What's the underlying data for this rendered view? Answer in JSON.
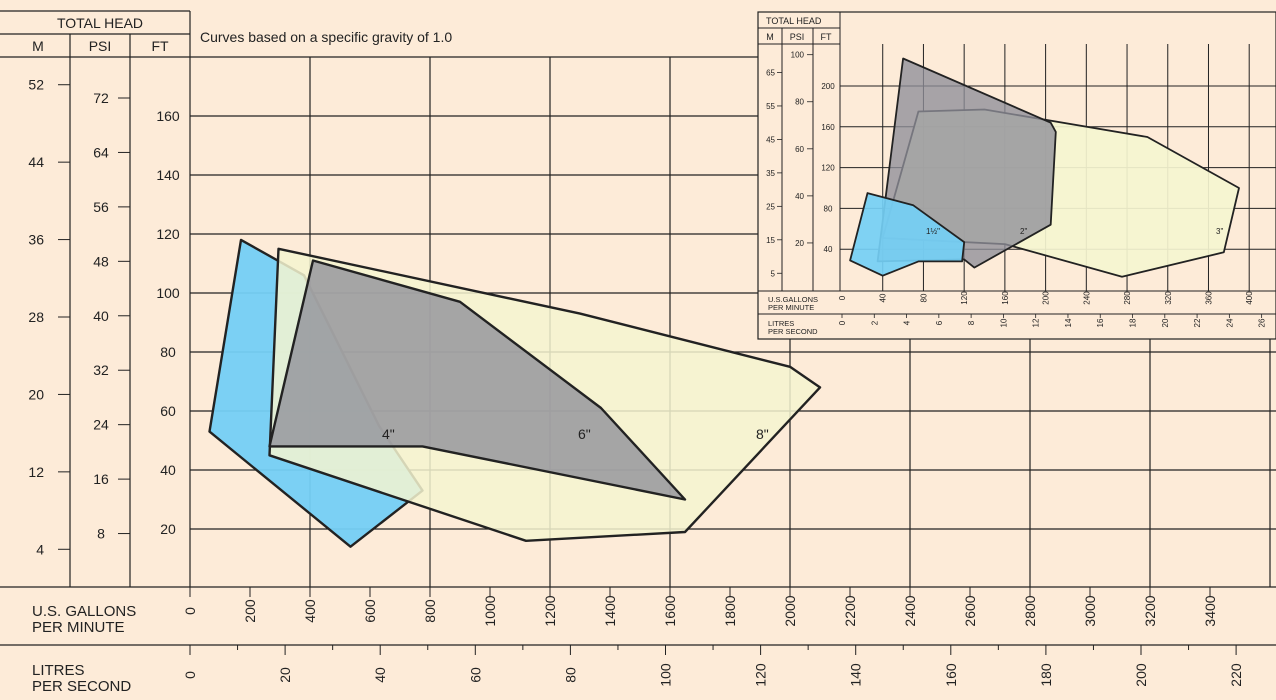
{
  "main_chart": {
    "head_header": {
      "title": "TOTAL HEAD",
      "col_m": "M",
      "col_psi": "PSI",
      "col_ft": "FT"
    },
    "note": "Curves based on a specific gravity of 1.0",
    "axis_gpm_label_1": "U.S. GALLONS",
    "axis_gpm_label_2": "PER MINUTE",
    "axis_lps_label_1": "LITRES",
    "axis_lps_label_2": "PER SECOND",
    "m_ticks": [
      "52",
      "44",
      "36",
      "28",
      "20",
      "12",
      "4"
    ],
    "psi_ticks": [
      "72",
      "64",
      "56",
      "48",
      "40",
      "32",
      "24",
      "16",
      "8"
    ],
    "ft_ticks": [
      "160",
      "140",
      "120",
      "100",
      "80",
      "60",
      "40",
      "20"
    ],
    "gpm_ticks": [
      "0",
      "200",
      "400",
      "600",
      "800",
      "1000",
      "1200",
      "1400",
      "1600",
      "1800",
      "2000",
      "2200",
      "2400",
      "2600",
      "2800",
      "3000",
      "3200",
      "3400"
    ],
    "lps_ticks": [
      "0",
      "20",
      "40",
      "60",
      "80",
      "100",
      "120",
      "140",
      "160",
      "180",
      "200",
      "220"
    ],
    "region_labels": [
      "4\"",
      "6\"",
      "8\""
    ]
  },
  "inset_chart": {
    "head_header": {
      "title": "TOTAL HEAD",
      "col_m": "M",
      "col_psi": "PSI",
      "col_ft": "FT"
    },
    "axis_gpm_label_1": "U.S.GALLONS",
    "axis_gpm_label_2": "PER MINUTE",
    "axis_lps_label_1": "LITRES",
    "axis_lps_label_2": "PER SECOND",
    "m_ticks": [
      "65",
      "55",
      "45",
      "35",
      "25",
      "15",
      "5"
    ],
    "psi_ticks": [
      "100",
      "80",
      "60",
      "40",
      "20"
    ],
    "ft_ticks": [
      "200",
      "160",
      "120",
      "80",
      "40"
    ],
    "gpm_ticks": [
      "0",
      "40",
      "80",
      "120",
      "160",
      "200",
      "240",
      "280",
      "320",
      "360",
      "400"
    ],
    "lps_ticks": [
      "0",
      "2",
      "4",
      "6",
      "8",
      "10",
      "12",
      "14",
      "16",
      "18",
      "20",
      "22",
      "24",
      "26"
    ],
    "region_labels": [
      "1½\"",
      "2\"",
      "3\""
    ]
  },
  "colors": {
    "background": "#fdebd8",
    "blue": "#74cff5",
    "gray": "#8e8e99",
    "yellow": "#f5f5d0",
    "line": "#222222"
  },
  "chart_data": [
    {
      "type": "area",
      "title": "",
      "xlabel": "U.S. GALLONS PER MINUTE",
      "ylabel": "TOTAL HEAD (FT)",
      "xlim": [
        0,
        3500
      ],
      "ylim": [
        0,
        180
      ],
      "grid": true,
      "series": [
        {
          "name": "4\"",
          "color": "#74cff5",
          "points": [
            [
              65,
              53
            ],
            [
              170,
              118
            ],
            [
              380,
              106
            ],
            [
              630,
              55
            ],
            [
              775,
              33
            ],
            [
              535,
              14
            ]
          ]
        },
        {
          "name": "8\"",
          "color": "#f5f5d0",
          "points": [
            [
              295,
              115
            ],
            [
              1300,
              93
            ],
            [
              2000,
              75
            ],
            [
              2100,
              68
            ],
            [
              1650,
              19
            ],
            [
              1120,
              16
            ],
            [
              265,
              45
            ]
          ]
        },
        {
          "name": "6\"",
          "color": "#8e8e99",
          "points": [
            [
              410,
              111
            ],
            [
              900,
              97
            ],
            [
              1370,
              61
            ],
            [
              1650,
              30
            ],
            [
              775,
              48
            ],
            [
              265,
              48
            ]
          ]
        }
      ]
    },
    {
      "type": "area",
      "title": "",
      "xlabel": "U.S.GALLONS PER MINUTE",
      "ylabel": "TOTAL HEAD (FT)",
      "xlim": [
        0,
        420
      ],
      "ylim": [
        0,
        230
      ],
      "grid": true,
      "series": [
        {
          "name": "3\"",
          "color": "#f5f5d0",
          "points": [
            [
              75,
              175
            ],
            [
              140,
              177
            ],
            [
              300,
              150
            ],
            [
              390,
              100
            ],
            [
              375,
              37
            ],
            [
              275,
              13
            ],
            [
              160,
              45
            ],
            [
              40,
              51
            ]
          ]
        },
        {
          "name": "2\"",
          "color": "#8e8e99",
          "points": [
            [
              60,
              227
            ],
            [
              205,
              164
            ],
            [
              210,
              155
            ],
            [
              205,
              64
            ],
            [
              130,
              22
            ],
            [
              120,
              30
            ],
            [
              35,
              28
            ]
          ]
        },
        {
          "name": "1½\"",
          "color": "#74cff5",
          "points": [
            [
              8,
              29
            ],
            [
              25,
              95
            ],
            [
              70,
              83
            ],
            [
              120,
              47
            ],
            [
              118,
              28
            ],
            [
              75,
              28
            ],
            [
              40,
              14
            ]
          ]
        }
      ]
    }
  ]
}
